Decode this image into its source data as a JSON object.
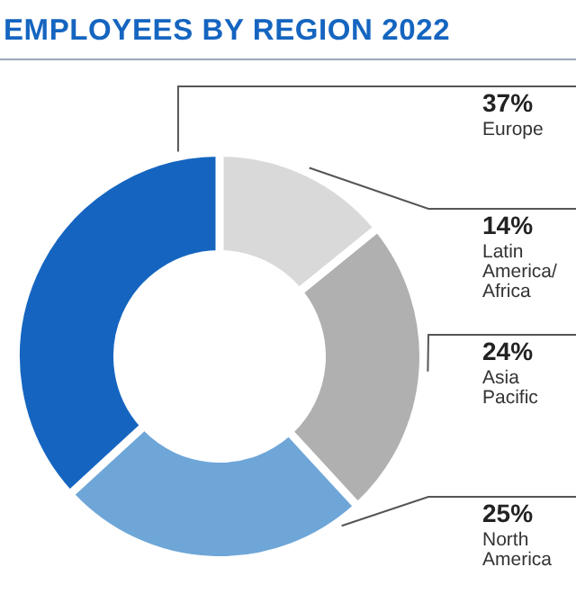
{
  "chart_data": {
    "type": "donut",
    "title": "EMPLOYEES BY REGION 2022",
    "categories": [
      "Latin America/Africa",
      "Asia Pacific",
      "North America",
      "Europe"
    ],
    "values": [
      14,
      24,
      25,
      37
    ],
    "colors": [
      "#d9d9d9",
      "#b0b0b0",
      "#6ea6d8",
      "#1565c0"
    ],
    "value_labels": [
      "14%",
      "24%",
      "25%",
      "37%"
    ]
  }
}
